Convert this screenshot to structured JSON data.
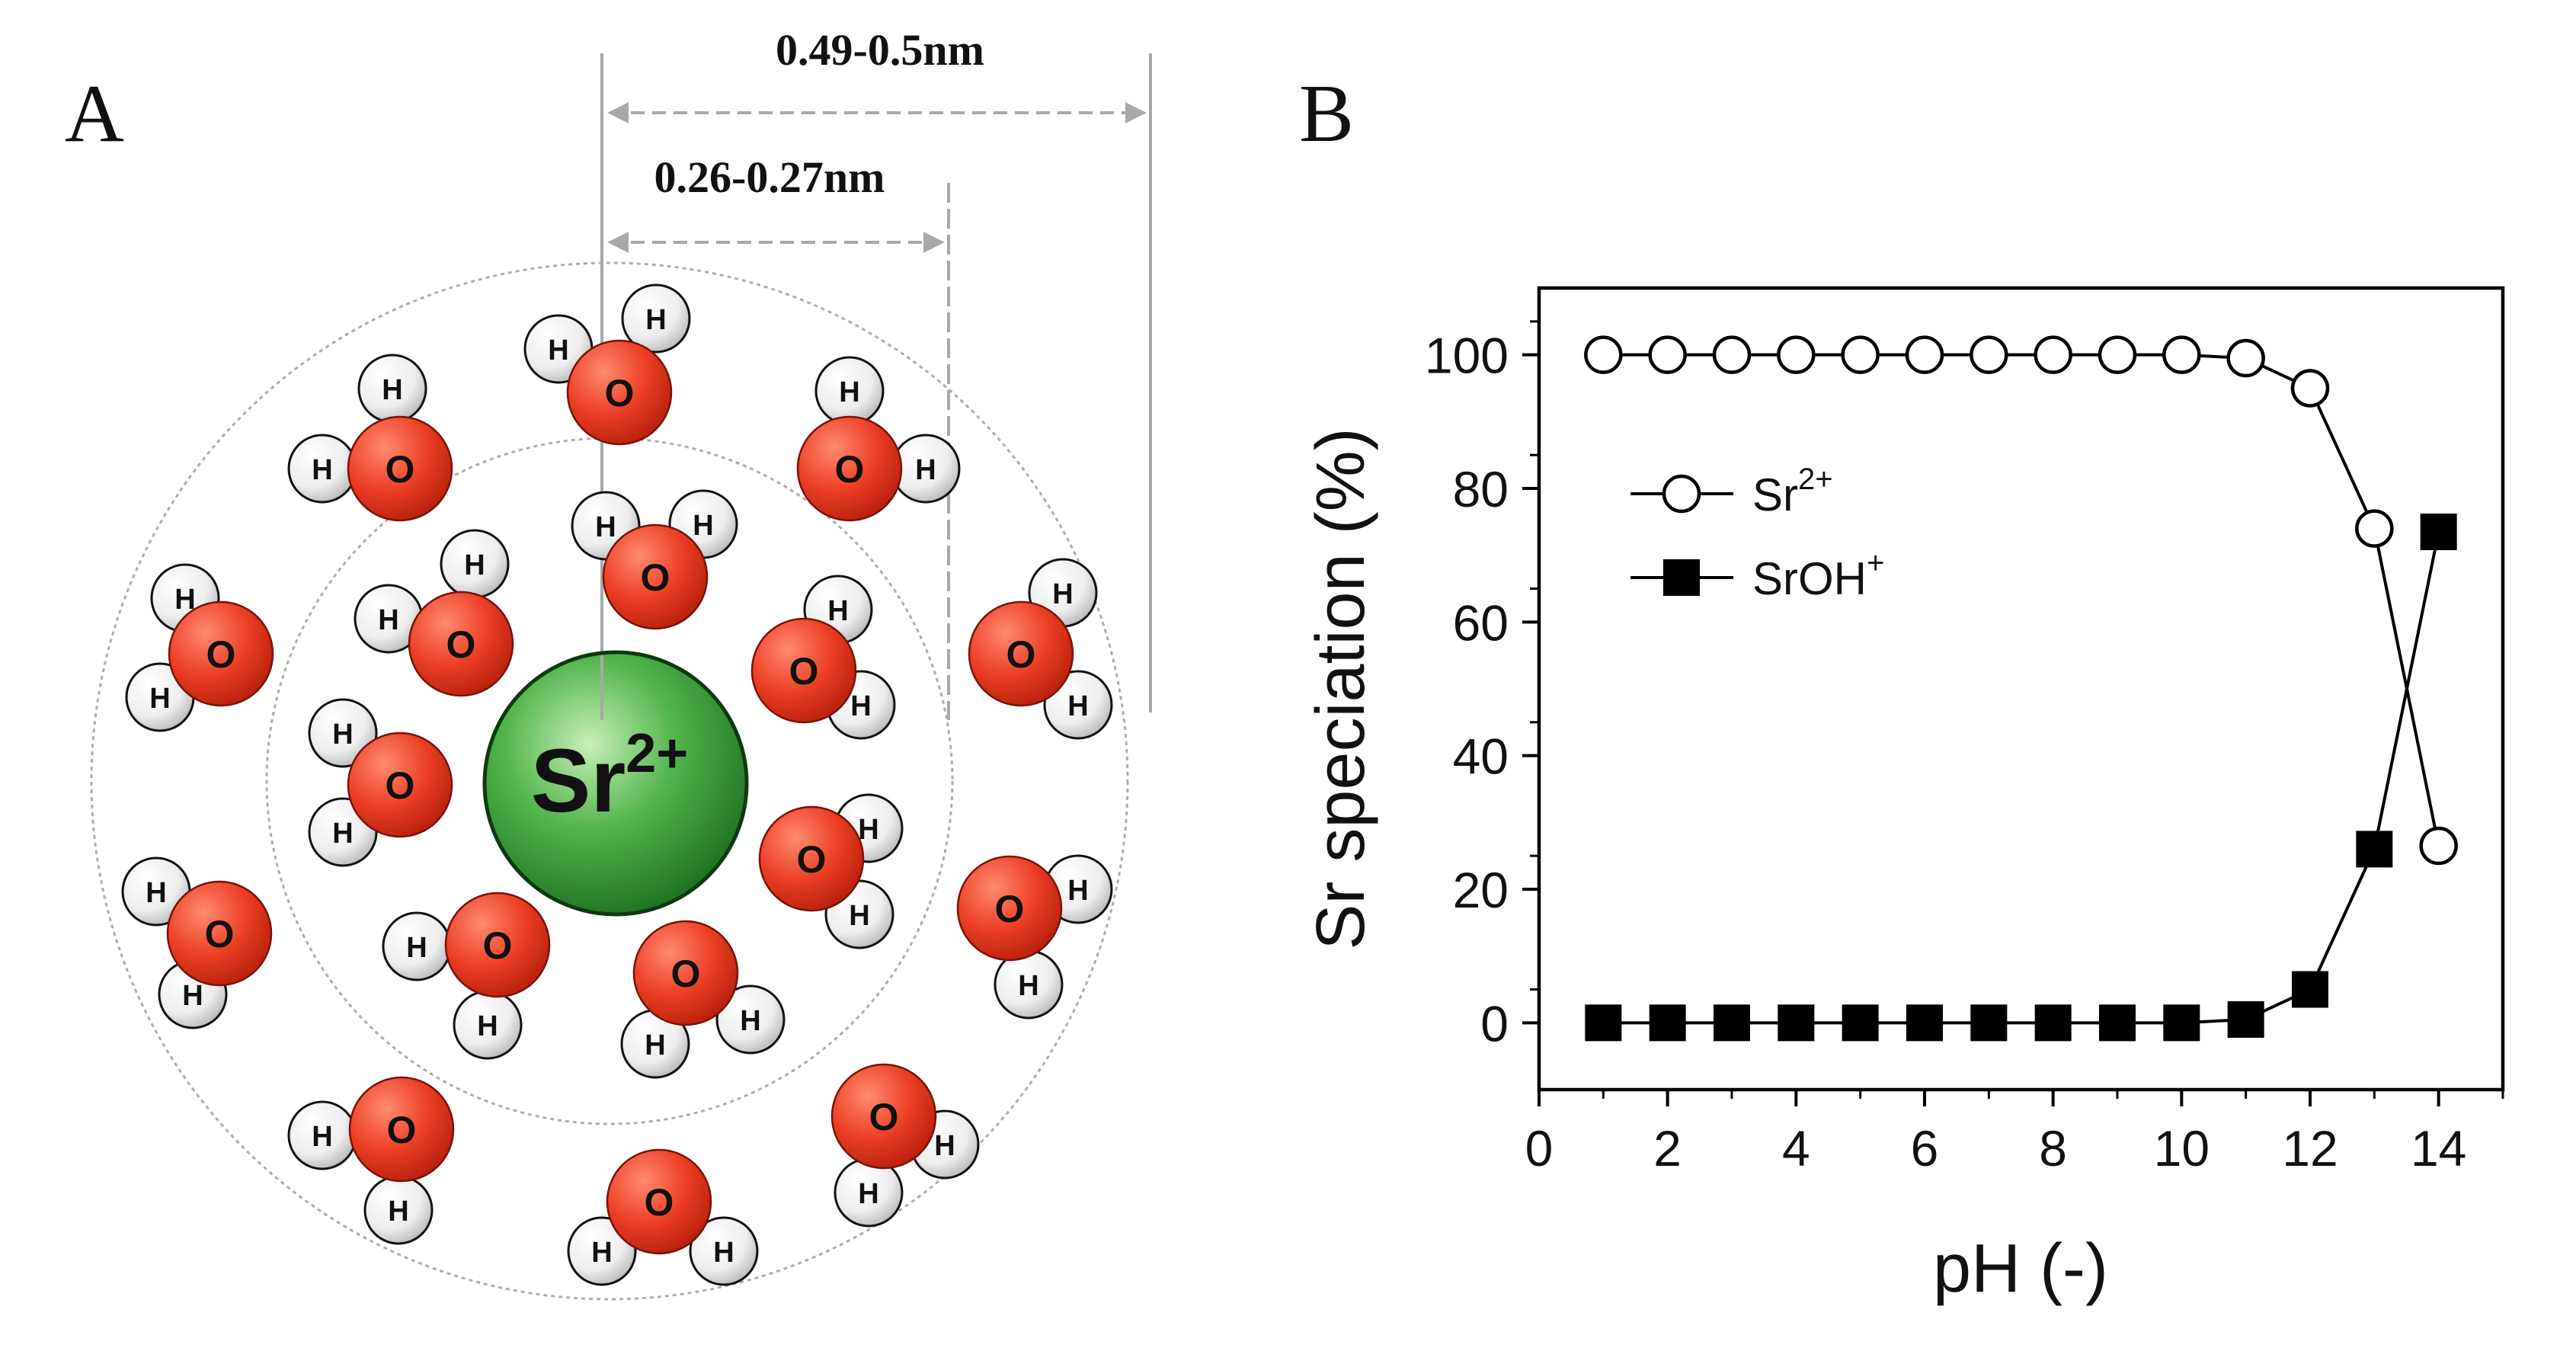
{
  "panel_a": {
    "label": "A",
    "ion_symbol": "Sr",
    "ion_charge": "2+",
    "outer_distance": "0.49-0.5nm",
    "inner_distance": "0.26-0.27nm",
    "oxygen_symbol": "O",
    "hydrogen_symbol": "H",
    "colors": {
      "ion": "#2e8b2e",
      "oxygen": "#e8321c",
      "hydrogen": "#f2f2f2"
    }
  },
  "panel_b": {
    "label": "B"
  },
  "chart_data": {
    "type": "line",
    "title": "",
    "xlabel": "pH (-)",
    "ylabel": "Sr speciation (%)",
    "xlim": [
      0,
      15
    ],
    "ylim": [
      -10,
      110
    ],
    "x_ticks": [
      0,
      2,
      4,
      6,
      8,
      10,
      12,
      14
    ],
    "y_ticks": [
      0,
      20,
      40,
      60,
      80,
      100
    ],
    "x": [
      1,
      2,
      3,
      4,
      5,
      6,
      7,
      8,
      9,
      10,
      11,
      12,
      13,
      14
    ],
    "series": [
      {
        "name": "Sr",
        "superscript": "2+",
        "marker": "open-circle",
        "values": [
          100,
          100,
          100,
          100,
          100,
          100,
          100,
          100,
          100,
          100,
          99.5,
          95,
          74,
          26.5
        ]
      },
      {
        "name": "SrOH",
        "superscript": "+",
        "marker": "filled-square",
        "values": [
          0,
          0,
          0,
          0,
          0,
          0,
          0,
          0,
          0,
          0,
          0.5,
          5,
          26,
          73.5
        ]
      }
    ],
    "legend_position": "left"
  }
}
